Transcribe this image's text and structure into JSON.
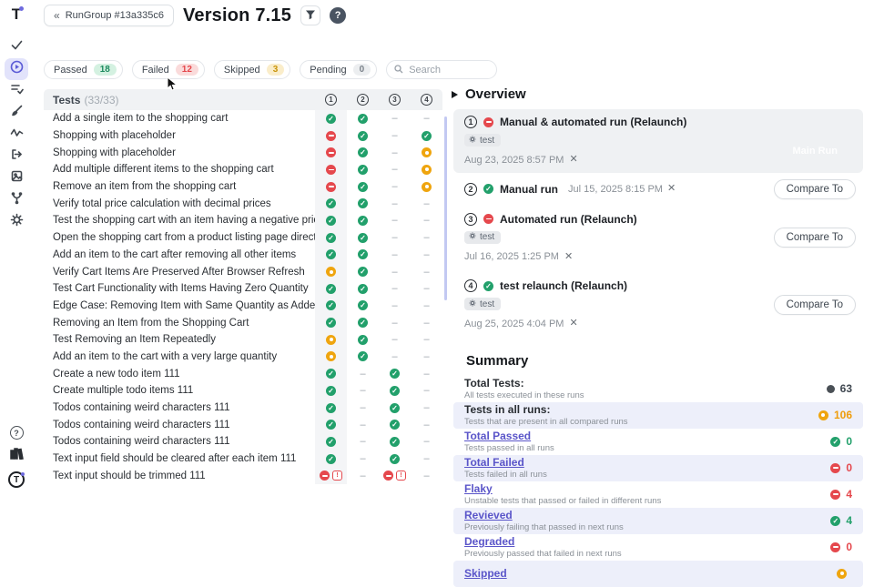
{
  "topbar": {
    "back_chevron": "«",
    "back_label": "RunGroup #13a335c6",
    "title": "Version 7.15"
  },
  "filters": {
    "search_placeholder": "Search",
    "chips": [
      {
        "label": "Passed",
        "count": "18",
        "type": "passed"
      },
      {
        "label": "Failed",
        "count": "12",
        "type": "failed"
      },
      {
        "label": "Skipped",
        "count": "3",
        "type": "skipped"
      },
      {
        "label": "Pending",
        "count": "0",
        "type": "pending"
      }
    ]
  },
  "table": {
    "title": "Tests",
    "count": "(33/33)",
    "columns": [
      "1",
      "2",
      "3",
      "4"
    ],
    "rows": [
      {
        "name": "Add a single item to the shopping cart",
        "statuses": [
          "passed",
          "passed",
          "none",
          "none"
        ]
      },
      {
        "name": "Shopping with placeholder",
        "statuses": [
          "failed",
          "passed",
          "none",
          "passed"
        ]
      },
      {
        "name": "Shopping with placeholder",
        "statuses": [
          "failed",
          "passed",
          "none",
          "skipped"
        ]
      },
      {
        "name": "Add multiple different items to the shopping cart",
        "statuses": [
          "failed",
          "passed",
          "none",
          "skipped"
        ]
      },
      {
        "name": "Remove an item from the shopping cart",
        "statuses": [
          "failed",
          "passed",
          "none",
          "skipped"
        ]
      },
      {
        "name": "Verify total price calculation with decimal prices",
        "statuses": [
          "passed",
          "passed",
          "none",
          "none"
        ]
      },
      {
        "name": "Test the shopping cart with an item having a negative price",
        "statuses": [
          "passed",
          "passed",
          "none",
          "none"
        ]
      },
      {
        "name": "Open the shopping cart from a product listing page directly",
        "statuses": [
          "passed",
          "passed",
          "none",
          "none"
        ]
      },
      {
        "name": "Add an item to the cart after removing all other items",
        "statuses": [
          "passed",
          "passed",
          "none",
          "none"
        ]
      },
      {
        "name": "Verify Cart Items Are Preserved After Browser Refresh",
        "statuses": [
          "skipped",
          "passed",
          "none",
          "none"
        ]
      },
      {
        "name": "Test Cart Functionality with Items Having Zero Quantity",
        "statuses": [
          "passed",
          "passed",
          "none",
          "none"
        ]
      },
      {
        "name": "Edge Case: Removing Item with Same Quantity as Added",
        "statuses": [
          "passed",
          "passed",
          "none",
          "none"
        ]
      },
      {
        "name": "Removing an Item from the Shopping Cart",
        "statuses": [
          "passed",
          "passed",
          "none",
          "none"
        ]
      },
      {
        "name": "Test Removing an Item Repeatedly",
        "statuses": [
          "skipped",
          "passed",
          "none",
          "none"
        ]
      },
      {
        "name": "Add an item to the cart with a very large quantity",
        "statuses": [
          "skipped",
          "passed",
          "none",
          "none"
        ]
      },
      {
        "name": "Create a new todo item 111",
        "statuses": [
          "passed",
          "none",
          "passed",
          "none"
        ]
      },
      {
        "name": "Create multiple todo items 111",
        "statuses": [
          "passed",
          "none",
          "passed",
          "none"
        ]
      },
      {
        "name": "Todos containing weird characters 111",
        "statuses": [
          "passed",
          "none",
          "passed",
          "none"
        ]
      },
      {
        "name": "Todos containing weird characters 111",
        "statuses": [
          "passed",
          "none",
          "passed",
          "none"
        ]
      },
      {
        "name": "Todos containing weird characters 111",
        "statuses": [
          "passed",
          "none",
          "passed",
          "none"
        ]
      },
      {
        "name": "Text input field should be cleared after each item 111",
        "statuses": [
          "passed",
          "none",
          "passed",
          "none"
        ]
      },
      {
        "name": "Text input should be trimmed 111",
        "statuses": [
          "failed-comment",
          "none",
          "failed-comment",
          "none"
        ]
      }
    ]
  },
  "overview": {
    "title": "Overview",
    "compare_label": "Compare To",
    "ghost_label": "Main Run",
    "runs": [
      {
        "index": "1",
        "status": "failed",
        "name": "Manual & automated run (Relaunch)",
        "tag": "test",
        "date": "Aug 23, 2025 8:57 PM",
        "inline_date": false,
        "highlighted": true,
        "action": "ghost"
      },
      {
        "index": "2",
        "status": "passed",
        "name": "Manual run",
        "tag": "",
        "date": "Jul 15, 2025 8:15 PM",
        "inline_date": true,
        "highlighted": false,
        "action": "compare"
      },
      {
        "index": "3",
        "status": "failed",
        "name": "Automated run (Relaunch)",
        "tag": "test",
        "date": "Jul 16, 2025 1:25 PM",
        "inline_date": false,
        "highlighted": false,
        "action": "compare"
      },
      {
        "index": "4",
        "status": "passed",
        "name": "test relaunch (Relaunch)",
        "tag": "test",
        "date": "Aug 25, 2025 4:04 PM",
        "inline_date": false,
        "highlighted": false,
        "action": "compare"
      }
    ]
  },
  "summary": {
    "title": "Summary",
    "rows": [
      {
        "label": "Total Tests:",
        "link": false,
        "description": "All tests executed in these runs",
        "value": "63",
        "icon": "dot",
        "value_color": "#3f4750",
        "shaded": false
      },
      {
        "label": "Tests in all runs:",
        "link": false,
        "description": "Tests that are present in all compared runs",
        "value": "106",
        "icon": "skipped",
        "value_color": "#ef9c0a",
        "shaded": true
      },
      {
        "label": "Total Passed",
        "link": true,
        "description": "Tests passed in all runs",
        "value": "0",
        "icon": "passed",
        "value_color": "#22a06b",
        "shaded": false
      },
      {
        "label": "Total Failed",
        "link": true,
        "description": "Tests failed in all runs",
        "value": "0",
        "icon": "failed",
        "value_color": "#e5484d",
        "shaded": true
      },
      {
        "label": "Flaky",
        "link": true,
        "description": "Unstable tests that passed or failed in different runs",
        "value": "4",
        "icon": "failed",
        "value_color": "#e5484d",
        "shaded": false
      },
      {
        "label": "Revieved",
        "link": true,
        "description": "Previously failing that passed in next runs",
        "value": "4",
        "icon": "passed",
        "value_color": "#22a06b",
        "shaded": true
      },
      {
        "label": "Degraded",
        "link": true,
        "description": "Previously passed that failed in next runs",
        "value": "0",
        "icon": "failed",
        "value_color": "#e5484d",
        "shaded": false
      },
      {
        "label": "Skipped",
        "link": true,
        "description": "",
        "value": "",
        "icon": "skipped",
        "value_color": "#ef9c0a",
        "shaded": true
      }
    ]
  },
  "colors": {
    "passed": "#22a06b",
    "failed": "#e5484d",
    "skipped": "#efa50f",
    "accent": "#5b5bd6",
    "link": "#5a55c9",
    "shaded_row": "#edeffa"
  }
}
